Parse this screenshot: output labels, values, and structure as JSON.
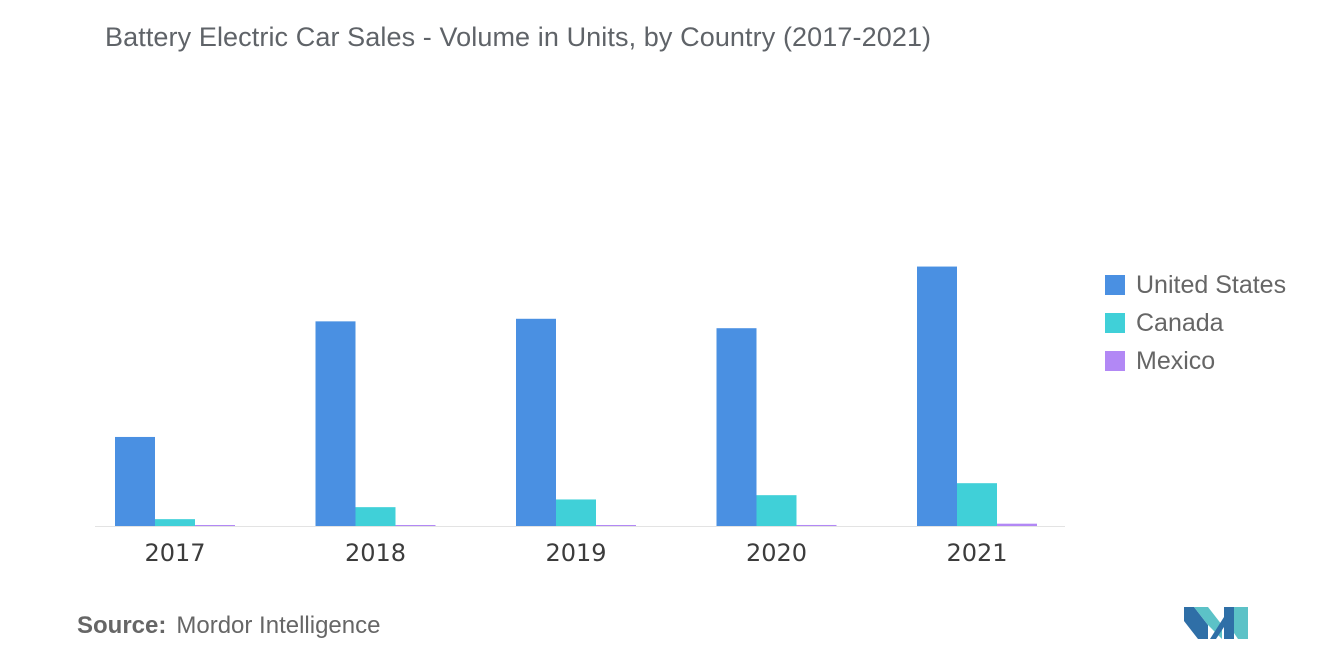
{
  "title": "Battery Electric Car Sales - Volume in Units, by Country (2017-2021)",
  "source": {
    "label": "Source:",
    "text": "Mordor Intelligence"
  },
  "logo": {
    "icon": "mordor-intelligence-logo-icon"
  },
  "chart_data": {
    "type": "bar",
    "title": "Battery Electric Car Sales - Volume in Units, by Country (2017-2021)",
    "xlabel": "",
    "ylabel": "",
    "categories": [
      "2017",
      "2018",
      "2019",
      "2020",
      "2021"
    ],
    "series": [
      {
        "name": "United States",
        "color": "#4a90e2",
        "values": [
          104000,
          239000,
          242000,
          231000,
          303000
        ]
      },
      {
        "name": "Canada",
        "color": "#40d0d8",
        "values": [
          8000,
          22000,
          31000,
          36000,
          50000
        ]
      },
      {
        "name": "Mexico",
        "color": "#b288f5",
        "values": [
          300,
          500,
          700,
          1200,
          2700
        ]
      }
    ],
    "ylim": [
      0,
      320000
    ],
    "grid": false,
    "yaxis_visible": false,
    "legend": "right"
  }
}
